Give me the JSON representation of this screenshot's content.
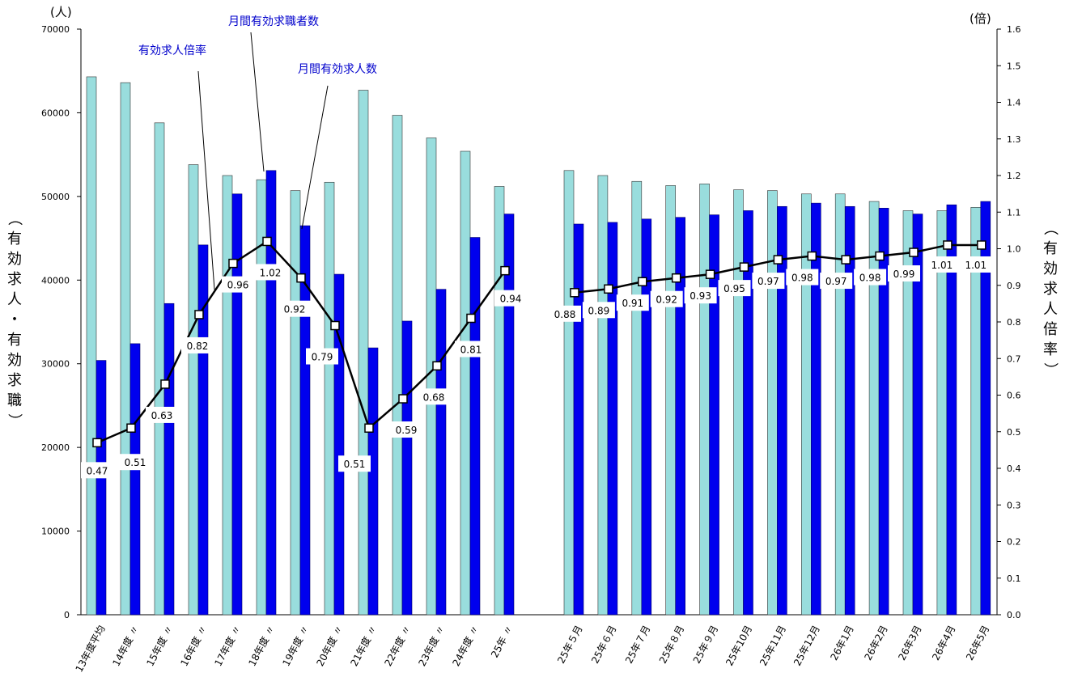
{
  "chart_data": {
    "type": "bar",
    "left_axis": {
      "label": "（有効求人・有効求職）",
      "unit": "(人)",
      "ylim": [
        0,
        70000
      ],
      "ticks": [
        "0",
        "10000",
        "20000",
        "30000",
        "40000",
        "50000",
        "60000",
        "70000"
      ]
    },
    "right_axis": {
      "label": "（有効求人倍率）",
      "unit": "(倍)",
      "ylim": [
        0,
        1.6
      ],
      "ticks": [
        "0.0",
        "0.1",
        "0.2",
        "0.3",
        "0.4",
        "0.5",
        "0.6",
        "0.7",
        "0.8",
        "0.9",
        "1.0",
        "1.1",
        "1.2",
        "1.3",
        "1.4",
        "1.5",
        "1.6"
      ]
    },
    "categories": [
      "13年度平均",
      "14年度 〃",
      "15年度 〃",
      "16年度 〃",
      "17年度 〃",
      "18年度 〃",
      "19年度 〃",
      "20年度 〃",
      "21年度 〃",
      "22年度 〃",
      "23年度 〃",
      "24年度 〃",
      "25年 〃",
      "25年５月",
      "25年６月",
      "25年７月",
      "25年８月",
      "25年９月",
      "25年10月",
      "25年11月",
      "25年12月",
      "26年1月",
      "26年2月",
      "26年3月",
      "26年4月",
      "26年5月"
    ],
    "series": [
      {
        "name": "月間有効求職者数",
        "kind": "bar",
        "color": "#99dddd",
        "values": [
          64300,
          63600,
          58800,
          53800,
          52500,
          52000,
          50700,
          51700,
          62700,
          59700,
          57000,
          55400,
          51200,
          53100,
          52500,
          51800,
          51300,
          51500,
          50800,
          50700,
          50300,
          50300,
          49400,
          48300,
          48300,
          48700
        ]
      },
      {
        "name": "月間有効求人数",
        "kind": "bar",
        "color": "#0000ee",
        "values": [
          30400,
          32400,
          37200,
          44200,
          50300,
          53100,
          46500,
          40700,
          31900,
          35100,
          38900,
          45100,
          47900,
          46700,
          46900,
          47300,
          47500,
          47800,
          48300,
          48800,
          49200,
          48800,
          48600,
          47900,
          49000,
          49400
        ]
      },
      {
        "name": "有効求人倍率",
        "kind": "line",
        "axis": "right",
        "color": "#000000",
        "values": [
          0.47,
          0.51,
          0.63,
          0.82,
          0.96,
          1.02,
          0.92,
          0.79,
          0.51,
          0.59,
          0.68,
          0.81,
          0.94,
          0.88,
          0.89,
          0.91,
          0.92,
          0.93,
          0.95,
          0.97,
          0.98,
          0.97,
          0.98,
          0.99,
          1.01,
          1.01
        ],
        "labels": [
          "0.47",
          "0.51",
          "0.63",
          "0.82",
          "0.96",
          "1.02",
          "0.92",
          "0.79",
          "0.51",
          "0.59",
          "0.68",
          "0.81",
          "0.94",
          "0.88",
          "0.89",
          "0.91",
          "0.92",
          "0.93",
          "0.95",
          "0.97",
          "0.98",
          "0.97",
          "0.98",
          "0.99",
          "1.01",
          "1.01"
        ]
      }
    ],
    "annotations": [
      "有効求人倍率",
      "月間有効求職者数",
      "月間有効求人数"
    ]
  }
}
